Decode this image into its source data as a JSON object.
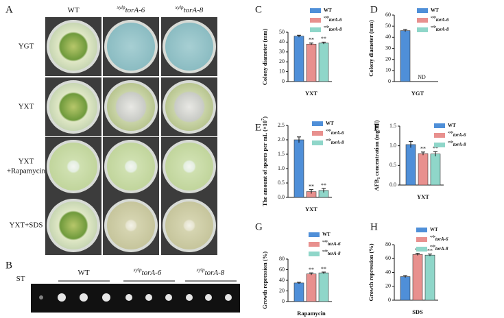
{
  "panels": {
    "A": {
      "letter": "A",
      "columns": [
        {
          "name": "WT"
        },
        {
          "sup": "xylp",
          "name": "torA-6"
        },
        {
          "sup": "xylp",
          "name": "torA-8"
        }
      ],
      "rows": [
        [
          "YGT"
        ],
        [
          "YXT"
        ],
        [
          "YXT",
          "+Rapamycin"
        ],
        [
          "YXT+SDS"
        ]
      ]
    },
    "B": {
      "letter": "B",
      "lanes": [
        {
          "name": "ST"
        },
        {
          "name": "WT"
        },
        {
          "sup": "xylp",
          "name": "torA-6"
        },
        {
          "sup": "xylp",
          "name": "torA-8"
        }
      ]
    }
  },
  "chart_data": [
    {
      "type": "bar",
      "letter": "C",
      "ylabel": [
        "Colony diameter (mm)"
      ],
      "ylabel_shift": [
        "none"
      ],
      "xlabel": "YXT",
      "ylim": [
        0,
        50
      ],
      "yticks": [
        0,
        10,
        20,
        30,
        40,
        50
      ],
      "series": [
        {
          "name": "WT",
          "color": "#4f8fd8",
          "values": [
            46
          ],
          "errors": [
            1
          ],
          "stars": [
            null
          ]
        },
        {
          "sup": "xylp",
          "name": "torA-6",
          "color": "#e8908e",
          "values": [
            38
          ],
          "errors": [
            1
          ],
          "stars": [
            "**"
          ]
        },
        {
          "sup": "xylp",
          "name": "torA-8",
          "color": "#8fd6c9",
          "values": [
            39
          ],
          "errors": [
            1
          ],
          "stars": [
            "**"
          ]
        }
      ]
    },
    {
      "type": "bar",
      "letter": "D",
      "ylabel": [
        "Colony diameter (mm)"
      ],
      "ylabel_shift": [
        "none"
      ],
      "xlabel": "YGT",
      "annotation": "ND",
      "ylim": [
        0,
        60
      ],
      "yticks": [
        0,
        10,
        20,
        30,
        40,
        50,
        60
      ],
      "series": [
        {
          "name": "WT",
          "color": "#4f8fd8",
          "values": [
            46
          ],
          "errors": [
            1
          ],
          "stars": [
            null
          ]
        },
        {
          "sup": "xylp",
          "name": "torA-6",
          "color": "#e8908e",
          "values": [
            0
          ],
          "errors": [
            0
          ],
          "stars": [
            null
          ]
        },
        {
          "sup": "xylp",
          "name": "torA-8",
          "color": "#8fd6c9",
          "values": [
            0
          ],
          "errors": [
            0
          ],
          "stars": [
            null
          ]
        }
      ]
    },
    {
      "type": "bar",
      "letter": "E",
      "ylabel": [
        "The amount of spores per mL (×10",
        "7",
        ")"
      ],
      "ylabel_shift": [
        "none",
        "super",
        "none"
      ],
      "xlabel": "YXT",
      "ylim": [
        0,
        2.5
      ],
      "yticks": [
        {
          "value": 0,
          "label": "0.0"
        },
        0.5,
        {
          "value": 1,
          "label": "1.0"
        },
        1.5,
        {
          "value": 2,
          "label": "2.0"
        },
        2.5
      ],
      "series": [
        {
          "name": "WT",
          "color": "#4f8fd8",
          "values": [
            2.0
          ],
          "errors": [
            0.1
          ],
          "stars": [
            null
          ]
        },
        {
          "sup": "xylp",
          "name": "torA-6",
          "color": "#e8908e",
          "values": [
            0.2
          ],
          "errors": [
            0.07
          ],
          "stars": [
            "**"
          ]
        },
        {
          "sup": "xylp",
          "name": "torA-8",
          "color": "#8fd6c9",
          "values": [
            0.24
          ],
          "errors": [
            0.07
          ],
          "stars": [
            "**"
          ]
        }
      ]
    },
    {
      "type": "bar",
      "letter": "F",
      "ylabel": [
        "AFB",
        "1",
        " concentration (mg/ml)"
      ],
      "ylabel_shift": [
        "none",
        "sub",
        "none"
      ],
      "xlabel": "YXT",
      "ylim": [
        0,
        1.5
      ],
      "yticks": [
        {
          "value": 0,
          "label": "0.0"
        },
        0.5,
        {
          "value": 1,
          "label": "1.0"
        },
        1.5
      ],
      "series": [
        {
          "name": "WT",
          "color": "#4f8fd8",
          "values": [
            1.03
          ],
          "errors": [
            0.08
          ],
          "stars": [
            null
          ]
        },
        {
          "sup": "xylp",
          "name": "torA-6",
          "color": "#e8908e",
          "values": [
            0.8
          ],
          "errors": [
            0.04
          ],
          "stars": [
            "**"
          ]
        },
        {
          "sup": "xylp",
          "name": "torA-8",
          "color": "#8fd6c9",
          "values": [
            0.79
          ],
          "errors": [
            0.06
          ],
          "stars": [
            "**"
          ]
        }
      ]
    },
    {
      "type": "bar",
      "letter": "G",
      "ylabel": [
        "Growth repression (%)"
      ],
      "ylabel_shift": [
        "none"
      ],
      "xlabel": "Rapamycin",
      "ylim": [
        0,
        80
      ],
      "yticks": [
        0,
        20,
        40,
        60,
        80
      ],
      "series": [
        {
          "name": "WT",
          "color": "#4f8fd8",
          "values": [
            35
          ],
          "errors": [
            1.5
          ],
          "stars": [
            null
          ]
        },
        {
          "sup": "xylp",
          "name": "torA-6",
          "color": "#e8908e",
          "values": [
            52
          ],
          "errors": [
            2
          ],
          "stars": [
            "**"
          ]
        },
        {
          "sup": "xylp",
          "name": "torA-8",
          "color": "#8fd6c9",
          "values": [
            54
          ],
          "errors": [
            1.5
          ],
          "stars": [
            "**"
          ]
        }
      ]
    },
    {
      "type": "bar",
      "letter": "H",
      "ylabel": [
        "Growth repression (%)"
      ],
      "ylabel_shift": [
        "none"
      ],
      "xlabel": "SDS",
      "ylim": [
        0,
        80
      ],
      "yticks": [
        0,
        20,
        40,
        60,
        80
      ],
      "series": [
        {
          "name": "WT",
          "color": "#4f8fd8",
          "values": [
            34
          ],
          "errors": [
            1.5
          ],
          "stars": [
            null
          ]
        },
        {
          "sup": "xylp",
          "name": "torA-6",
          "color": "#e8908e",
          "values": [
            66
          ],
          "errors": [
            1.5
          ],
          "stars": [
            "**"
          ]
        },
        {
          "sup": "xylp",
          "name": "torA-8",
          "color": "#8fd6c9",
          "values": [
            65
          ],
          "errors": [
            1.5
          ],
          "stars": [
            "**"
          ]
        }
      ]
    }
  ]
}
